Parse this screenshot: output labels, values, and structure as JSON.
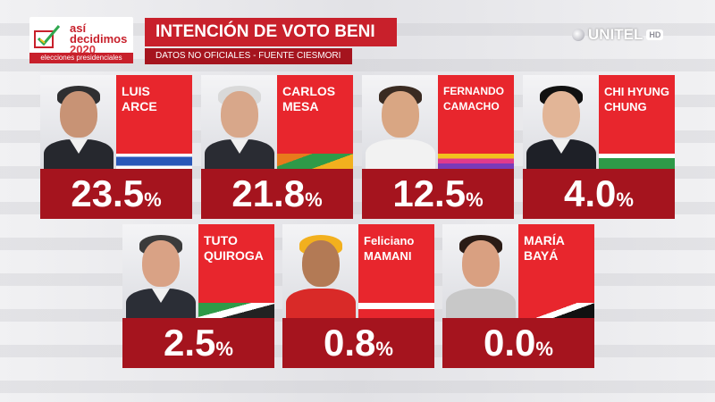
{
  "header": {
    "logo_line1": "así",
    "logo_line2": "decidimos",
    "logo_line3": "2020",
    "logo_footer": "elecciones presidenciales",
    "title": "INTENCIÓN DE VOTO BENI",
    "subtitle": "DATOS NO OFICIALES - FUENTE CIESMORI",
    "broadcaster": "UNITEL",
    "broadcaster_badge": "HD"
  },
  "colors": {
    "accent_red": "#e8262d",
    "dark_red": "#a5141e",
    "brand_red": "#c8202b"
  },
  "candidates": [
    {
      "first": "LUIS",
      "last": "ARCE",
      "percent": "23.5",
      "sign": "%",
      "flag": "mas",
      "hair": "#2f2f31",
      "skin": "#c89375",
      "body": "#26282e"
    },
    {
      "first": "CARLOS",
      "last": "MESA",
      "percent": "21.8",
      "sign": "%",
      "flag": "cc",
      "hair": "#d9d9d9",
      "skin": "#d8a78a",
      "body": "#2a2c33"
    },
    {
      "first": "FERNANDO",
      "last": "CAMACHO",
      "percent": "12.5",
      "sign": "%",
      "flag": "creemos",
      "hair": "#3a2b22",
      "skin": "#d9a683",
      "body": "#f2f2f2"
    },
    {
      "first": "CHI HYUNG",
      "last": "CHUNG",
      "percent": "4.0",
      "sign": "%",
      "flag": "fpv",
      "hair": "#111111",
      "skin": "#e2b597",
      "body": "#1e2027"
    },
    {
      "first": "TUTO",
      "last": "QUIROGA",
      "percent": "2.5",
      "sign": "%",
      "flag": "libre21",
      "hair": "#3b3b3b",
      "skin": "#d9a285",
      "body": "#2b2e36"
    },
    {
      "first": "Feliciano",
      "last": "MAMANI",
      "percent": "0.8",
      "sign": "%",
      "flag": "pan",
      "hair": "#f2b01e",
      "skin": "#b37a55",
      "body": "#d92a28"
    },
    {
      "first": "MARÍA",
      "last": "BAYÁ",
      "percent": "0.0",
      "sign": "%",
      "flag": "adn",
      "hair": "#2a1c16",
      "skin": "#d9a081",
      "body": "#c8c8c8"
    }
  ]
}
